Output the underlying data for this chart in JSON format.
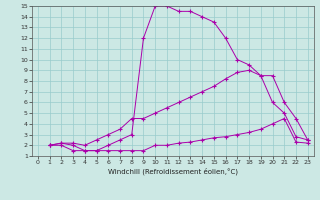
{
  "xlabel": "Windchill (Refroidissement éolien,°C)",
  "bg_color": "#cce8e4",
  "line_color": "#aa00aa",
  "grid_color": "#99cccc",
  "xlim": [
    -0.5,
    23.5
  ],
  "ylim": [
    1,
    15
  ],
  "xticks": [
    0,
    1,
    2,
    3,
    4,
    5,
    6,
    7,
    8,
    9,
    10,
    11,
    12,
    13,
    14,
    15,
    16,
    17,
    18,
    19,
    20,
    21,
    22,
    23
  ],
  "yticks": [
    1,
    2,
    3,
    4,
    5,
    6,
    7,
    8,
    9,
    10,
    11,
    12,
    13,
    14,
    15
  ],
  "lines": [
    {
      "x": [
        1,
        2,
        3,
        4,
        5,
        6,
        7,
        8,
        9,
        10,
        11,
        12,
        13,
        14,
        15,
        16,
        17,
        18,
        19,
        20,
        21,
        22,
        23
      ],
      "y": [
        2,
        2,
        1.5,
        1.5,
        1.5,
        1.5,
        1.5,
        1.5,
        1.5,
        2,
        2,
        2.2,
        2.3,
        2.5,
        2.7,
        2.8,
        3.0,
        3.2,
        3.5,
        4.0,
        4.5,
        2.3,
        2.2
      ]
    },
    {
      "x": [
        1,
        2,
        3,
        4,
        5,
        6,
        7,
        8,
        9,
        10,
        11,
        12,
        13,
        14,
        15,
        16,
        17,
        18,
        19,
        20,
        21,
        22,
        23
      ],
      "y": [
        2,
        2.2,
        2.2,
        2.0,
        2.5,
        3.0,
        3.5,
        4.5,
        4.5,
        5.0,
        5.5,
        6.0,
        6.5,
        7.0,
        7.5,
        8.2,
        8.8,
        9.0,
        8.5,
        6.0,
        5.0,
        2.8,
        2.5
      ]
    },
    {
      "x": [
        1,
        2,
        3,
        4,
        5,
        6,
        7,
        8,
        9,
        10,
        11,
        12,
        13,
        14,
        15,
        16,
        17,
        18,
        19,
        20,
        21,
        22,
        23
      ],
      "y": [
        2,
        2.2,
        2.0,
        1.5,
        1.5,
        2.0,
        2.5,
        3.0,
        12.0,
        15.0,
        15.0,
        14.5,
        14.5,
        14.0,
        13.5,
        12.0,
        10.0,
        9.5,
        8.5,
        8.5,
        6.0,
        4.5,
        2.5
      ]
    }
  ]
}
